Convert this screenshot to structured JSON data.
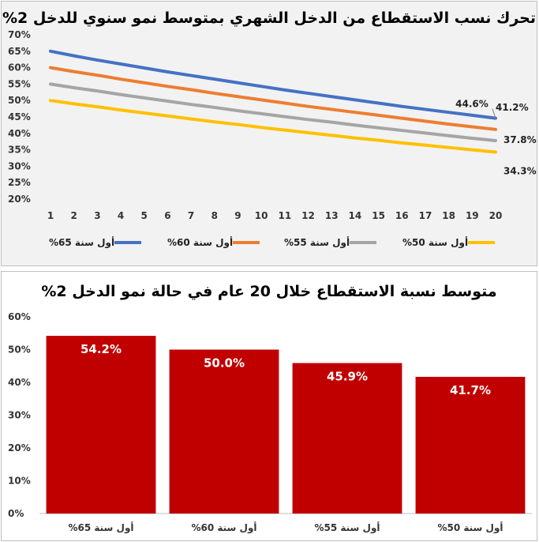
{
  "colors": {
    "series_65": "#4472c4",
    "series_60": "#ed7d31",
    "series_55": "#a5a5a5",
    "series_50": "#ffc000",
    "bar": "#c00000",
    "panel_bg": "#f2f2f2"
  },
  "chart_data": [
    {
      "type": "line",
      "title": "تحرك نسب الاستقطاع من الدخل الشهري بمتوسط نمو سنوي للدخل 2%",
      "x": [
        1,
        2,
        3,
        4,
        5,
        6,
        7,
        8,
        9,
        10,
        11,
        12,
        13,
        14,
        15,
        16,
        17,
        18,
        19,
        20
      ],
      "xticklabels": [
        "1",
        "2",
        "3",
        "4",
        "5",
        "6",
        "7",
        "8",
        "9",
        "10",
        "11",
        "12",
        "13",
        "14",
        "15",
        "16",
        "17",
        "18",
        "19",
        "20"
      ],
      "yticklabels": [
        "70%",
        "65%",
        "60%",
        "55%",
        "50%",
        "45%",
        "40%",
        "35%",
        "30%",
        "25%",
        "20%"
      ],
      "ylim": [
        20,
        70
      ],
      "grid": false,
      "legend_position": "bottom",
      "series": [
        {
          "name": "أول سنة 65%",
          "color_key": "series_65",
          "values": [
            65.0,
            63.6,
            62.3,
            61.1,
            59.9,
            58.7,
            57.6,
            56.5,
            55.4,
            54.3,
            53.2,
            52.2,
            51.2,
            50.2,
            49.2,
            48.2,
            47.3,
            46.4,
            45.5,
            44.6
          ],
          "end_label": "44.6%"
        },
        {
          "name": "أول سنة 60%",
          "color_key": "series_60",
          "values": [
            60.0,
            58.8,
            57.7,
            56.5,
            55.4,
            54.3,
            53.3,
            52.2,
            51.2,
            50.2,
            49.2,
            48.2,
            47.3,
            46.4,
            45.5,
            44.6,
            43.7,
            42.8,
            42.0,
            41.2
          ],
          "end_label": "41.2%"
        },
        {
          "name": "أول سنة 55%",
          "color_key": "series_55",
          "values": [
            55.0,
            53.9,
            52.9,
            51.8,
            50.8,
            49.8,
            48.8,
            47.9,
            46.9,
            46.0,
            45.1,
            44.2,
            43.4,
            42.5,
            41.7,
            40.9,
            40.1,
            39.3,
            38.5,
            37.8
          ],
          "end_label": "37.8%"
        },
        {
          "name": "أول سنة 50%",
          "color_key": "series_50",
          "values": [
            50.0,
            49.0,
            48.1,
            47.1,
            46.2,
            45.3,
            44.4,
            43.5,
            42.7,
            41.8,
            41.0,
            40.2,
            39.4,
            38.6,
            37.9,
            37.1,
            36.4,
            35.7,
            35.0,
            34.3
          ],
          "end_label": "34.3%"
        }
      ]
    },
    {
      "type": "bar",
      "title": "متوسط نسبة الاستقطاع خلال 20 عام في حالة نمو الدخل 2%",
      "categories": [
        "أول سنة 65%",
        "أول سنة 60%",
        "أول سنة 55%",
        "أول سنة 50%"
      ],
      "values": [
        54.2,
        50.0,
        45.9,
        41.7
      ],
      "data_labels": [
        "54.2%",
        "50.0%",
        "45.9%",
        "41.7%"
      ],
      "yticklabels": [
        "60%",
        "50%",
        "40%",
        "30%",
        "20%",
        "10%",
        "0%"
      ],
      "ylim": [
        0,
        60
      ],
      "grid": false
    }
  ]
}
